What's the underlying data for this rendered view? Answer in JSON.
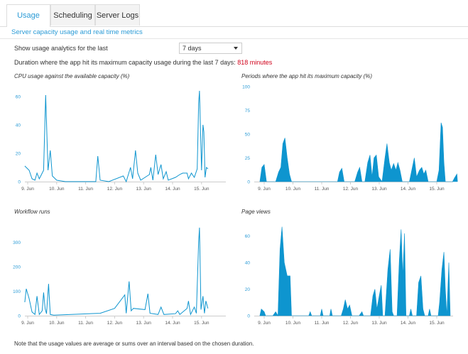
{
  "tabs": [
    {
      "label": "Usage",
      "active": true
    },
    {
      "label": "Scheduling",
      "active": false
    },
    {
      "label": "Server Logs",
      "active": false
    }
  ],
  "subtitle": "Server capacity usage and real time metrics",
  "analytics": {
    "label": "Show usage analytics for the last",
    "selected": "7 days"
  },
  "duration": {
    "label": "Duration where the app hit its maximum capacity usage during the last 7 days:",
    "value": "818 minutes"
  },
  "note": "Note that the usage values are average or sums over an interval based on the chosen duration.",
  "colors": {
    "accent": "#2b9bd6",
    "fill": "#0e95cf",
    "alert": "#d0021b"
  },
  "chart_data": [
    {
      "id": "cpu",
      "type": "line",
      "title": "CPU usage against the available capacity (%)",
      "x_ticks": [
        "9. Jun",
        "10. Jun",
        "11. Jun",
        "12. Jun",
        "13. Jun",
        "14. Jun",
        "15. Jun"
      ],
      "x_range": [
        0,
        7.1
      ],
      "y_ticks": [
        0,
        20,
        40,
        60
      ],
      "ylim": [
        0,
        66
      ],
      "grid": false,
      "values": [
        [
          -0.1,
          11
        ],
        [
          0.05,
          8
        ],
        [
          0.15,
          2
        ],
        [
          0.25,
          1
        ],
        [
          0.32,
          6
        ],
        [
          0.4,
          2
        ],
        [
          0.45,
          4
        ],
        [
          0.55,
          8
        ],
        [
          0.62,
          61
        ],
        [
          0.7,
          8
        ],
        [
          0.78,
          22
        ],
        [
          0.85,
          4
        ],
        [
          1.0,
          1
        ],
        [
          1.3,
          0
        ],
        [
          2.35,
          0
        ],
        [
          2.42,
          18
        ],
        [
          2.5,
          1
        ],
        [
          2.8,
          0
        ],
        [
          3.3,
          4
        ],
        [
          3.4,
          0
        ],
        [
          3.55,
          10
        ],
        [
          3.62,
          2
        ],
        [
          3.72,
          22
        ],
        [
          3.8,
          6
        ],
        [
          3.9,
          1
        ],
        [
          4.2,
          5
        ],
        [
          4.25,
          10
        ],
        [
          4.32,
          1
        ],
        [
          4.42,
          19
        ],
        [
          4.5,
          5
        ],
        [
          4.6,
          12
        ],
        [
          4.68,
          2
        ],
        [
          4.78,
          7
        ],
        [
          4.85,
          1
        ],
        [
          5.1,
          3
        ],
        [
          5.25,
          5
        ],
        [
          5.35,
          6
        ],
        [
          5.5,
          6
        ],
        [
          5.55,
          2
        ],
        [
          5.65,
          6
        ],
        [
          5.75,
          3
        ],
        [
          5.85,
          9
        ],
        [
          5.9,
          55
        ],
        [
          5.93,
          64
        ],
        [
          6.0,
          8
        ],
        [
          6.05,
          40
        ],
        [
          6.08,
          35
        ],
        [
          6.12,
          3
        ],
        [
          6.17,
          10
        ],
        [
          6.22,
          9
        ]
      ]
    },
    {
      "id": "capacity",
      "type": "area",
      "title": "Periods where the app hit its maximum capacity (%)",
      "x_ticks": [
        "9. Jun",
        "10. Jun",
        "11. Jun",
        "12. Jun",
        "13. Jun",
        "14. Jun",
        "15. Jun"
      ],
      "x_range": [
        0,
        7.1
      ],
      "y_ticks": [
        0,
        25,
        50,
        75,
        100
      ],
      "ylim": [
        0,
        100
      ],
      "grid": false,
      "values": [
        [
          -0.15,
          0
        ],
        [
          -0.08,
          15
        ],
        [
          0.0,
          18
        ],
        [
          0.08,
          0
        ],
        [
          0.4,
          0
        ],
        [
          0.5,
          10
        ],
        [
          0.58,
          15
        ],
        [
          0.65,
          40
        ],
        [
          0.72,
          46
        ],
        [
          0.8,
          25
        ],
        [
          0.88,
          8
        ],
        [
          0.95,
          0
        ],
        [
          2.55,
          0
        ],
        [
          2.62,
          10
        ],
        [
          2.7,
          14
        ],
        [
          2.78,
          0
        ],
        [
          3.15,
          0
        ],
        [
          3.25,
          10
        ],
        [
          3.32,
          15
        ],
        [
          3.4,
          0
        ],
        [
          3.5,
          0
        ],
        [
          3.6,
          20
        ],
        [
          3.68,
          28
        ],
        [
          3.75,
          5
        ],
        [
          3.82,
          25
        ],
        [
          3.9,
          28
        ],
        [
          3.98,
          5
        ],
        [
          4.1,
          0
        ],
        [
          4.2,
          25
        ],
        [
          4.27,
          40
        ],
        [
          4.35,
          20
        ],
        [
          4.42,
          12
        ],
        [
          4.5,
          19
        ],
        [
          4.58,
          12
        ],
        [
          4.65,
          20
        ],
        [
          4.72,
          12
        ],
        [
          4.8,
          0
        ],
        [
          5.05,
          0
        ],
        [
          5.15,
          15
        ],
        [
          5.22,
          25
        ],
        [
          5.3,
          5
        ],
        [
          5.4,
          12
        ],
        [
          5.48,
          15
        ],
        [
          5.55,
          8
        ],
        [
          5.62,
          12
        ],
        [
          5.7,
          0
        ],
        [
          6.0,
          0
        ],
        [
          6.08,
          12
        ],
        [
          6.15,
          62
        ],
        [
          6.2,
          57
        ],
        [
          6.25,
          20
        ],
        [
          6.3,
          0
        ],
        [
          6.55,
          0
        ],
        [
          6.62,
          4
        ],
        [
          6.7,
          8
        ],
        [
          6.72,
          0
        ]
      ]
    },
    {
      "id": "workflow",
      "type": "line",
      "title": "Workflow runs",
      "x_ticks": [
        "9. Jun",
        "10. Jun",
        "11. Jun",
        "12. Jun",
        "13. Jun",
        "14. Jun",
        "15. Jun"
      ],
      "x_range": [
        0,
        7.1
      ],
      "y_ticks": [
        0,
        100,
        200,
        300
      ],
      "ylim": [
        0,
        380
      ],
      "grid": false,
      "values": [
        [
          -0.1,
          55
        ],
        [
          -0.05,
          110
        ],
        [
          0.05,
          70
        ],
        [
          0.15,
          15
        ],
        [
          0.25,
          5
        ],
        [
          0.32,
          80
        ],
        [
          0.4,
          5
        ],
        [
          0.5,
          20
        ],
        [
          0.55,
          95
        ],
        [
          0.6,
          30
        ],
        [
          0.65,
          8
        ],
        [
          0.72,
          130
        ],
        [
          0.78,
          5
        ],
        [
          0.9,
          2
        ],
        [
          2.5,
          10
        ],
        [
          3.0,
          30
        ],
        [
          3.35,
          85
        ],
        [
          3.4,
          10
        ],
        [
          3.5,
          140
        ],
        [
          3.57,
          20
        ],
        [
          3.65,
          30
        ],
        [
          4.05,
          25
        ],
        [
          4.15,
          90
        ],
        [
          4.22,
          10
        ],
        [
          4.5,
          5
        ],
        [
          4.6,
          35
        ],
        [
          4.7,
          5
        ],
        [
          5.1,
          8
        ],
        [
          5.18,
          20
        ],
        [
          5.25,
          5
        ],
        [
          5.5,
          30
        ],
        [
          5.55,
          60
        ],
        [
          5.62,
          5
        ],
        [
          5.75,
          35
        ],
        [
          5.82,
          10
        ],
        [
          5.9,
          300
        ],
        [
          5.93,
          360
        ],
        [
          5.98,
          25
        ],
        [
          6.05,
          80
        ],
        [
          6.1,
          10
        ],
        [
          6.15,
          60
        ],
        [
          6.22,
          30
        ]
      ]
    },
    {
      "id": "pageviews",
      "type": "area",
      "title": "Page views",
      "x_ticks": [
        "9. Jun",
        "10. Jun",
        "11. Jun",
        "12. Jun",
        "13. Jun",
        "14. Jun",
        "15. Jun"
      ],
      "x_range": [
        0,
        7.1
      ],
      "y_ticks": [
        0,
        20,
        40,
        60
      ],
      "ylim": [
        0,
        70
      ],
      "grid": false,
      "values": [
        [
          -0.15,
          0
        ],
        [
          -0.1,
          5
        ],
        [
          0.0,
          3
        ],
        [
          0.05,
          0
        ],
        [
          0.3,
          0
        ],
        [
          0.4,
          3
        ],
        [
          0.48,
          0
        ],
        [
          0.55,
          50
        ],
        [
          0.62,
          67
        ],
        [
          0.7,
          40
        ],
        [
          0.8,
          30
        ],
        [
          0.9,
          30
        ],
        [
          0.95,
          0
        ],
        [
          1.55,
          0
        ],
        [
          1.6,
          3
        ],
        [
          1.65,
          0
        ],
        [
          1.95,
          0
        ],
        [
          2.0,
          5
        ],
        [
          2.05,
          0
        ],
        [
          2.28,
          0
        ],
        [
          2.32,
          5
        ],
        [
          2.37,
          0
        ],
        [
          2.68,
          0
        ],
        [
          2.75,
          5
        ],
        [
          2.82,
          12
        ],
        [
          2.9,
          5
        ],
        [
          2.97,
          8
        ],
        [
          3.05,
          0
        ],
        [
          3.3,
          0
        ],
        [
          3.4,
          3
        ],
        [
          3.45,
          0
        ],
        [
          3.7,
          0
        ],
        [
          3.78,
          15
        ],
        [
          3.85,
          20
        ],
        [
          3.92,
          5
        ],
        [
          4.0,
          15
        ],
        [
          4.07,
          23
        ],
        [
          4.12,
          0
        ],
        [
          4.2,
          0
        ],
        [
          4.3,
          35
        ],
        [
          4.38,
          50
        ],
        [
          4.45,
          3
        ],
        [
          4.5,
          0
        ],
        [
          4.62,
          0
        ],
        [
          4.7,
          42
        ],
        [
          4.76,
          65
        ],
        [
          4.82,
          30
        ],
        [
          4.88,
          62
        ],
        [
          4.93,
          0
        ],
        [
          5.05,
          0
        ],
        [
          5.1,
          5
        ],
        [
          5.15,
          0
        ],
        [
          5.3,
          0
        ],
        [
          5.37,
          25
        ],
        [
          5.45,
          30
        ],
        [
          5.52,
          5
        ],
        [
          5.58,
          0
        ],
        [
          5.7,
          0
        ],
        [
          5.75,
          5
        ],
        [
          5.8,
          0
        ],
        [
          6.05,
          0
        ],
        [
          6.1,
          10
        ],
        [
          6.18,
          35
        ],
        [
          6.25,
          48
        ],
        [
          6.3,
          20
        ],
        [
          6.35,
          0
        ],
        [
          6.42,
          40
        ],
        [
          6.47,
          0
        ]
      ]
    }
  ]
}
